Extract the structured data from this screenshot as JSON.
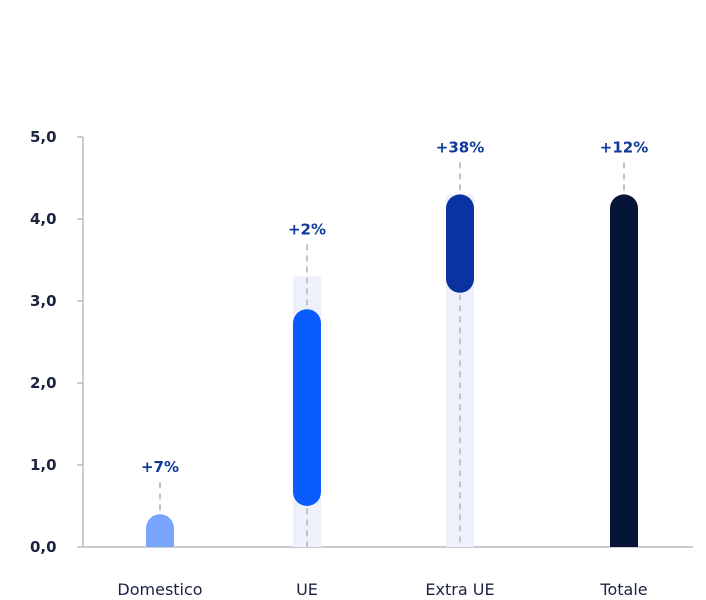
{
  "chart_data": {
    "type": "bar",
    "categories": [
      "Domestico",
      "UE",
      "Extra UE",
      "Totale"
    ],
    "values": [
      {
        "start": 0.0,
        "end": 0.4
      },
      {
        "start": 0.5,
        "end": 2.9
      },
      {
        "start": 3.1,
        "end": 4.3
      },
      {
        "start": 0.0,
        "end": 4.3
      }
    ],
    "prior_values": [
      0.4,
      3.3,
      4.3,
      4.3
    ],
    "growth_labels": [
      "+7%",
      "+2%",
      "+38%",
      "+12%"
    ],
    "colors": [
      "#7aa5ff",
      "#0a5cff",
      "#0a32a0",
      "#061437"
    ],
    "shadow_color": "#eef1fb",
    "y_ticks": [
      "0,0",
      "1,0",
      "2,0",
      "3,0",
      "4,0",
      "5,0"
    ],
    "ylim": [
      0,
      5
    ],
    "title": "",
    "xlabel": "",
    "ylabel": "",
    "grid": false,
    "legend": "none"
  }
}
